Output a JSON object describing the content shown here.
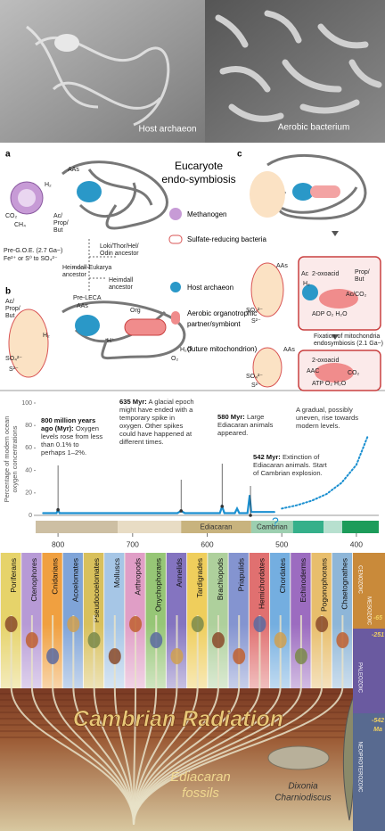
{
  "photos": [
    {
      "caption": "Host archaeon"
    },
    {
      "caption": "Aerobic bacterium"
    }
  ],
  "diagram": {
    "panels": [
      "a",
      "b",
      "c"
    ],
    "title": [
      "Eucaryote",
      "endo-symbiosis"
    ],
    "legend": [
      {
        "lines": [
          "Methanogen"
        ]
      },
      {
        "lines": [
          "Sulfate-reducing bacteria"
        ]
      },
      {
        "lines": [
          "Host archaeon"
        ]
      },
      {
        "lines": [
          "Aerobic organotrophic",
          "partner/symbiont"
        ]
      },
      {
        "lines": [
          "(future mitochondrion)"
        ]
      }
    ],
    "labels": [
      "AAs",
      "H₂",
      "CO₂",
      "CH₄",
      "Ac/",
      "Prop/",
      "But",
      "Pre-G.O.E. (2.7 Ga~)",
      "Fe²⁺ or S⁰ to SO₄²⁻",
      "Loki/Thor/Hel/",
      "Odin ancestor",
      "Heimdall-Eukarya",
      "ancestor",
      "Heimdall",
      "ancestor",
      "Pre-LECA",
      "Ac/",
      "Prop/",
      "But",
      "AAs",
      "Org",
      "H₂",
      "H⁺",
      "SO₄²⁻",
      "S²⁻",
      "H₂O",
      "O₂",
      "AAs",
      "2-oxoacid",
      "Ac",
      "Prop/",
      "But",
      "H₂",
      "Ac/CO₂",
      "ADP O₂ H₂O",
      "SO₄²⁻",
      "S²⁻",
      "Fixation of mitochondria",
      "endosymbiosis (2.1 Ga~)",
      "AAs",
      "2-oxoacid",
      "AAC",
      "CO₂",
      "ATP O₂ H₂O",
      "SO₄²⁻",
      "S²⁻"
    ]
  },
  "chart_data": {
    "type": "line",
    "y_axis_label": [
      "Percentage of modern ocean",
      "oxygen concentrations"
    ],
    "x": [
      820,
      802,
      800,
      798,
      640,
      635,
      630,
      583,
      580,
      577,
      563,
      560,
      557,
      546,
      543,
      541,
      535,
      510,
      500,
      480,
      460,
      440,
      420,
      400,
      385
    ],
    "series": [
      {
        "color": "#1a8fd0",
        "line_style": "solid",
        "values": [
          2,
          2,
          5,
          2,
          2,
          4,
          2,
          2,
          8,
          2,
          2,
          6,
          2,
          2,
          18,
          3,
          3,
          3,
          null,
          null,
          null,
          null,
          null,
          null,
          null
        ]
      },
      {
        "color": "#1a8fd0",
        "line_style": "dotted",
        "values": [
          null,
          null,
          null,
          null,
          null,
          null,
          null,
          null,
          null,
          null,
          null,
          null,
          null,
          null,
          null,
          null,
          null,
          null,
          6,
          9,
          13,
          19,
          29,
          45,
          70
        ]
      }
    ],
    "xlim": [
      830,
      370
    ],
    "xticks": [
      800,
      700,
      600,
      500,
      400
    ],
    "ylim": [
      0,
      100
    ],
    "yticks": [
      0,
      20,
      40,
      60,
      80,
      100
    ],
    "periods": [
      {
        "start": 830,
        "end": 720,
        "color": "#cdbfa3"
      },
      {
        "start": 720,
        "end": 635,
        "color": "#e8dcc4"
      },
      {
        "name": "Ediacaran",
        "start": 635,
        "end": 541,
        "color": "#c8b37e"
      },
      {
        "name": "Cambrian",
        "start": 541,
        "end": 485,
        "color": "#9ccfb0"
      },
      {
        "start": 485,
        "end": 444,
        "color": "#35b08a"
      },
      {
        "start": 444,
        "end": 419,
        "color": "#b7e0cf"
      },
      {
        "start": 419,
        "end": 370,
        "color": "#1c9c5a"
      }
    ],
    "annotations": [
      {
        "x": 800,
        "head": "800 million years ago (Myr):",
        "body": "Oxygen levels rose from less than 0.1% to perhaps 1–2%."
      },
      {
        "x": 635,
        "head": "635 Myr:",
        "body": "A glacial epoch might have ended with a temporary spike in oxygen. Other spikes could have happened at different times."
      },
      {
        "x": 580,
        "head": "580 Myr:",
        "body": "Large Ediacaran animals appeared."
      },
      {
        "head": "",
        "body": "A gradual, possibly uneven, rise towards modern levels."
      },
      {
        "x": 542,
        "head": "542 Myr:",
        "body": "Extinction of Ediacaran animals. Start of Cambrian explosion."
      },
      {
        "head": "",
        "body": "?"
      }
    ]
  },
  "phylogeny": {
    "title": "Cambrian Radiation",
    "phyla": [
      {
        "name": "Poriferans",
        "color": "#e6d36a"
      },
      {
        "name": "Ctenophores",
        "color": "#b79ad6"
      },
      {
        "name": "Cnidarians",
        "color": "#f0a040"
      },
      {
        "name": "Acoelomates",
        "color": "#7fa4d8"
      },
      {
        "name": "Pseudocoelomates",
        "color": "#d8c05c"
      },
      {
        "name": "Molluscs",
        "color": "#a6c6e6"
      },
      {
        "name": "Arthropods",
        "color": "#e09ec6"
      },
      {
        "name": "Onychophorans",
        "color": "#96c676"
      },
      {
        "name": "Annelids",
        "color": "#8474c0"
      },
      {
        "name": "Tardigrades",
        "color": "#efce5c"
      },
      {
        "name": "Brachiopods",
        "color": "#aed09c"
      },
      {
        "name": "Priapulids",
        "color": "#8494d0"
      },
      {
        "name": "Hemichordates",
        "color": "#e07070"
      },
      {
        "name": "Chordates",
        "color": "#74aee0"
      },
      {
        "name": "Echinoderms",
        "color": "#9c6cc0"
      },
      {
        "name": "Pogonophorans",
        "color": "#e8be6c"
      },
      {
        "name": "Chaetognathes",
        "color": "#8eb6d8"
      }
    ],
    "eras": [
      "CENOZOIC",
      "MESOZOIC",
      "PALEOZOIC",
      "NEOPROTEROZOIC"
    ],
    "ages": [
      "-65",
      "-251",
      "-542",
      "Ma"
    ],
    "fossils": [
      "Ediacaran",
      "fossils"
    ],
    "fossil_names": [
      "Dixonia",
      "Charniodiscus"
    ]
  }
}
